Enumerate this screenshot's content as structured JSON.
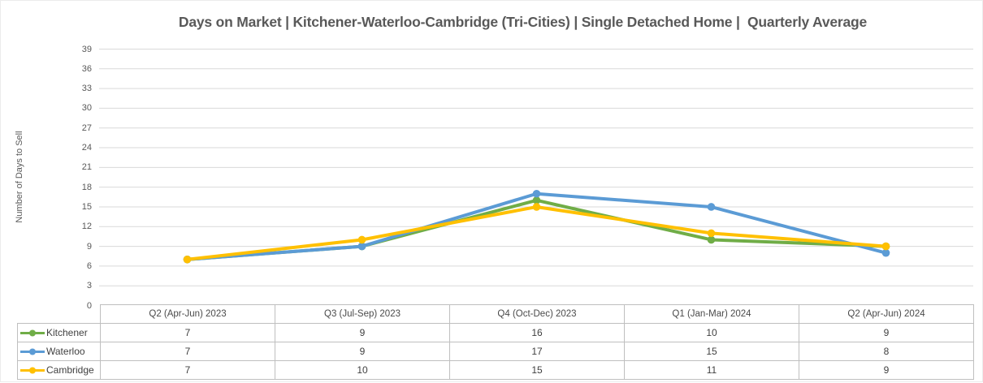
{
  "title": "Days on Market | Kitchener-Waterloo-Cambridge (Tri-Cities) | Single Detached Home |  Quarterly Average",
  "y_axis_label": "Number of Days to Sell",
  "colors": {
    "kitchener": "#70AD47",
    "waterloo": "#5B9BD5",
    "cambridge": "#FFC000",
    "gridline": "#D9D9D9",
    "table_border": "#BFBFBF",
    "title_text": "#595959",
    "axis_text": "#595959",
    "table_text": "#404040"
  },
  "chart_data": {
    "type": "line",
    "title": "Days on Market | Kitchener-Waterloo-Cambridge (Tri-Cities) | Single Detached Home |  Quarterly Average",
    "categories": [
      "Q2 (Apr-Jun) 2023",
      "Q3 (Jul-Sep) 2023",
      "Q4 (Oct-Dec) 2023",
      "Q1 (Jan-Mar) 2024",
      "Q2 (Apr-Jun) 2024"
    ],
    "series": [
      {
        "name": "Kitchener",
        "color": "#70AD47",
        "values": [
          7,
          9,
          16,
          10,
          9
        ]
      },
      {
        "name": "Waterloo",
        "color": "#5B9BD5",
        "values": [
          7,
          9,
          17,
          15,
          8
        ]
      },
      {
        "name": "Cambridge",
        "color": "#FFC000",
        "values": [
          7,
          10,
          15,
          11,
          9
        ]
      }
    ],
    "xlabel": "",
    "ylabel": "Number of Days to Sell",
    "ylim": [
      0,
      39
    ],
    "ytick_step": 3,
    "yticks": [
      0,
      3,
      6,
      9,
      12,
      15,
      18,
      21,
      24,
      27,
      30,
      33,
      36,
      39
    ],
    "grid": true,
    "legend_position": "data-table-left",
    "data_table_shown": true,
    "marker": "circle"
  }
}
